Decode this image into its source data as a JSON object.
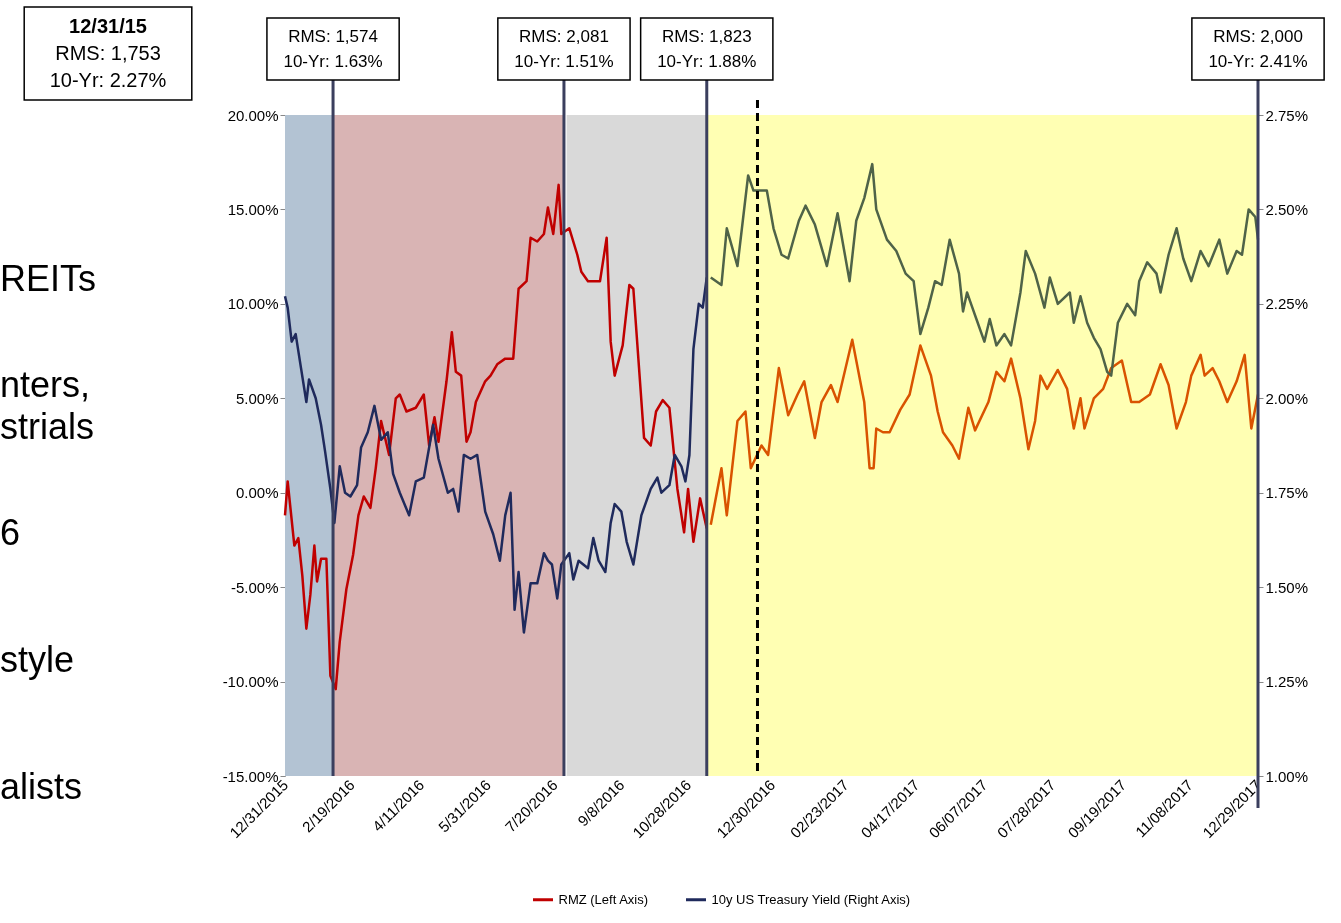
{
  "chart_data": {
    "type": "line",
    "xlim": [
      "2015-12-31",
      "2017-12-29"
    ],
    "xticks": [
      {
        "value": "2015-12-31",
        "label": "12/31/2015"
      },
      {
        "value": "2016-02-19",
        "label": "2/19/2016"
      },
      {
        "value": "2016-04-11",
        "label": "4/11/2016"
      },
      {
        "value": "2016-05-31",
        "label": "5/31/2016"
      },
      {
        "value": "2016-07-20",
        "label": "7/20/2016"
      },
      {
        "value": "2016-09-08",
        "label": "9/8/2016"
      },
      {
        "value": "2016-10-28",
        "label": "10/28/2016"
      },
      {
        "value": "2016-12-30",
        "label": "12/30/2016"
      },
      {
        "value": "2017-02-23",
        "label": "02/23/2017"
      },
      {
        "value": "2017-04-17",
        "label": "04/17/2017"
      },
      {
        "value": "2017-06-07",
        "label": "06/07/2017"
      },
      {
        "value": "2017-07-28",
        "label": "07/28/2017"
      },
      {
        "value": "2017-09-19",
        "label": "09/19/2017"
      },
      {
        "value": "2017-11-08",
        "label": "11/08/2017"
      },
      {
        "value": "2017-12-29",
        "label": "12/29/2017"
      }
    ],
    "ylim": [
      -15,
      20
    ],
    "yticks": [
      {
        "value": -15,
        "label": "-15.00%"
      },
      {
        "value": -10,
        "label": "-10.00%"
      },
      {
        "value": -5,
        "label": "-5.00%"
      },
      {
        "value": 0,
        "label": "0.00%"
      },
      {
        "value": 5,
        "label": "5.00%"
      },
      {
        "value": 10,
        "label": "10.00%"
      },
      {
        "value": 15,
        "label": "15.00%"
      },
      {
        "value": 20,
        "label": "20.00%"
      }
    ],
    "y2lim": [
      1,
      2.75
    ],
    "y2ticks": [
      {
        "value": 1,
        "label": "1.00%"
      },
      {
        "value": 1.25,
        "label": "1.25%"
      },
      {
        "value": 1.5,
        "label": "1.50%"
      },
      {
        "value": 1.75,
        "label": "1.75%"
      },
      {
        "value": 2,
        "label": "2.00%"
      },
      {
        "value": 2.25,
        "label": "2.25%"
      },
      {
        "value": 2.5,
        "label": "2.50%"
      },
      {
        "value": 2.75,
        "label": "2.75%"
      }
    ],
    "legend": "bottom",
    "series": [
      {
        "name": "RMZ (Left Axis)",
        "color": "#c00000",
        "x": [
          "2015-12-31",
          "2016-01-02",
          "2016-01-07",
          "2016-01-10",
          "2016-01-13",
          "2016-01-16",
          "2016-01-19",
          "2016-01-22",
          "2016-01-24",
          "2016-01-27",
          "2016-01-31",
          "2016-02-03",
          "2016-02-07",
          "2016-02-10",
          "2016-02-15",
          "2016-02-20",
          "2016-02-24",
          "2016-02-28",
          "2016-03-04",
          "2016-03-08",
          "2016-03-12",
          "2016-03-18",
          "2016-03-23",
          "2016-03-26",
          "2016-03-31",
          "2016-04-07",
          "2016-04-13",
          "2016-04-17",
          "2016-04-21",
          "2016-04-24",
          "2016-04-30",
          "2016-05-04",
          "2016-05-07",
          "2016-05-11",
          "2016-05-15",
          "2016-05-18",
          "2016-05-22",
          "2016-05-29",
          "2016-06-02",
          "2016-06-07",
          "2016-06-13",
          "2016-06-19",
          "2016-06-23",
          "2016-06-29",
          "2016-07-02",
          "2016-07-07",
          "2016-07-12",
          "2016-07-15",
          "2016-07-19",
          "2016-07-23",
          "2016-07-25",
          "2016-07-31",
          "2016-08-06",
          "2016-08-09",
          "2016-08-14",
          "2016-08-18",
          "2016-08-23",
          "2016-08-28",
          "2016-08-31",
          "2016-09-03",
          "2016-09-09",
          "2016-09-14",
          "2016-09-17",
          "2016-09-25",
          "2016-09-30",
          "2016-10-04",
          "2016-10-09",
          "2016-10-14",
          "2016-10-20",
          "2016-10-25",
          "2016-10-28",
          "2016-11-01",
          "2016-11-06",
          "2016-11-11"
        ],
        "values": [
          -1.2,
          0.6,
          -2.8,
          -2.4,
          -4.4,
          -7.2,
          -5.4,
          -2.8,
          -4.7,
          -3.5,
          -3.5,
          -9.7,
          -10.4,
          -7.9,
          -5.1,
          -3.3,
          -1.2,
          -0.2,
          -0.8,
          1.3,
          3.8,
          2.0,
          5.0,
          5.2,
          4.3,
          4.5,
          5.2,
          2.5,
          4.0,
          2.7,
          5.9,
          8.5,
          6.4,
          6.2,
          2.7,
          3.2,
          4.8,
          5.9,
          6.2,
          6.8,
          7.1,
          7.1,
          10.8,
          11.2,
          13.5,
          13.3,
          13.7,
          15.1,
          13.7,
          16.3,
          13.7,
          14.0,
          12.6,
          11.7,
          11.2,
          11.2,
          11.2,
          13.5,
          8.0,
          6.2,
          7.8,
          11.0,
          10.8,
          2.9,
          2.5,
          4.3,
          4.9,
          4.5,
          0.2,
          -2.1,
          0.2,
          -2.6,
          -0.3,
          -1.9
        ]
      },
      {
        "color": "#d95300",
        "x": [
          "2016-11-14",
          "2016-11-22",
          "2016-11-26",
          "2016-12-04",
          "2016-12-10",
          "2016-12-14",
          "2016-12-22",
          "2016-12-27",
          "2017-01-04",
          "2017-01-11",
          "2017-01-18",
          "2017-01-23",
          "2017-01-31",
          "2017-02-05",
          "2017-02-12",
          "2017-02-17",
          "2017-02-28",
          "2017-03-09",
          "2017-03-13",
          "2017-03-16",
          "2017-03-18",
          "2017-03-23",
          "2017-03-28",
          "2017-04-05",
          "2017-04-12",
          "2017-04-20",
          "2017-04-28",
          "2017-05-03",
          "2017-05-07",
          "2017-05-14",
          "2017-05-19",
          "2017-05-26",
          "2017-05-31",
          "2017-06-10",
          "2017-06-16",
          "2017-06-22",
          "2017-06-27",
          "2017-07-04",
          "2017-07-10",
          "2017-07-15",
          "2017-07-19",
          "2017-07-24",
          "2017-08-01",
          "2017-08-08",
          "2017-08-13",
          "2017-08-18",
          "2017-08-21",
          "2017-08-28",
          "2017-09-04",
          "2017-09-10",
          "2017-09-18",
          "2017-09-25",
          "2017-10-01",
          "2017-10-09",
          "2017-10-17",
          "2017-10-23",
          "2017-10-29",
          "2017-11-05",
          "2017-11-09",
          "2017-11-16",
          "2017-11-19",
          "2017-11-25",
          "2017-11-30",
          "2017-12-06",
          "2017-12-13",
          "2017-12-19",
          "2017-12-24",
          "2017-12-29"
        ],
        "values": [
          -1.7,
          1.3,
          -1.2,
          3.8,
          4.3,
          1.3,
          2.5,
          2.0,
          6.6,
          4.1,
          5.2,
          5.9,
          2.9,
          4.8,
          5.7,
          4.8,
          8.1,
          4.8,
          1.3,
          1.3,
          3.4,
          3.2,
          3.2,
          4.4,
          5.2,
          7.8,
          6.2,
          4.3,
          3.2,
          2.5,
          1.8,
          4.5,
          3.3,
          4.8,
          6.4,
          5.9,
          7.1,
          5.0,
          2.3,
          3.8,
          6.2,
          5.5,
          6.5,
          5.5,
          3.4,
          5.0,
          3.4,
          5.0,
          5.5,
          6.6,
          7.0,
          4.8,
          4.8,
          5.2,
          6.8,
          5.7,
          3.4,
          4.8,
          6.2,
          7.3,
          6.2,
          6.6,
          5.9,
          4.8,
          5.9,
          7.3,
          3.4,
          5.2
        ]
      },
      {
        "name": "10y US Treasury Yield (Right Axis)",
        "color": "#1f2a5c",
        "axis": "y2",
        "x": [
          "2015-12-31",
          "2016-01-02",
          "2016-01-05",
          "2016-01-08",
          "2016-01-12",
          "2016-01-16",
          "2016-01-18",
          "2016-01-23",
          "2016-01-27",
          "2016-01-30",
          "2016-02-03",
          "2016-02-06",
          "2016-02-10",
          "2016-02-14",
          "2016-02-18",
          "2016-02-23",
          "2016-02-26",
          "2016-03-02",
          "2016-03-07",
          "2016-03-12",
          "2016-03-17",
          "2016-03-21",
          "2016-03-26",
          "2016-04-02",
          "2016-04-07",
          "2016-04-13",
          "2016-04-20",
          "2016-04-24",
          "2016-05-01",
          "2016-05-05",
          "2016-05-09",
          "2016-05-13",
          "2016-05-18",
          "2016-05-23",
          "2016-05-29",
          "2016-06-04",
          "2016-06-09",
          "2016-06-13",
          "2016-06-17",
          "2016-06-20",
          "2016-06-23",
          "2016-06-27",
          "2016-07-02",
          "2016-07-07",
          "2016-07-12",
          "2016-07-15",
          "2016-07-18",
          "2016-07-22",
          "2016-07-25",
          "2016-07-31",
          "2016-08-03",
          "2016-08-07",
          "2016-08-14",
          "2016-08-18",
          "2016-08-22",
          "2016-08-27",
          "2016-08-31",
          "2016-09-03",
          "2016-09-08",
          "2016-09-12",
          "2016-09-17",
          "2016-09-23",
          "2016-09-30",
          "2016-10-05",
          "2016-10-08",
          "2016-10-14",
          "2016-10-18",
          "2016-10-23",
          "2016-10-26",
          "2016-10-29",
          "2016-11-01",
          "2016-11-05",
          "2016-11-08",
          "2016-11-11"
        ],
        "values": [
          2.27,
          2.24,
          2.15,
          2.17,
          2.08,
          1.99,
          2.05,
          2.0,
          1.93,
          1.86,
          1.76,
          1.67,
          1.82,
          1.75,
          1.74,
          1.77,
          1.87,
          1.91,
          1.98,
          1.89,
          1.91,
          1.8,
          1.75,
          1.69,
          1.78,
          1.79,
          1.93,
          1.84,
          1.75,
          1.76,
          1.7,
          1.85,
          1.84,
          1.85,
          1.7,
          1.64,
          1.57,
          1.69,
          1.75,
          1.44,
          1.54,
          1.38,
          1.51,
          1.51,
          1.59,
          1.57,
          1.56,
          1.47,
          1.56,
          1.59,
          1.52,
          1.57,
          1.55,
          1.63,
          1.57,
          1.54,
          1.67,
          1.72,
          1.7,
          1.62,
          1.56,
          1.69,
          1.76,
          1.79,
          1.75,
          1.77,
          1.85,
          1.82,
          1.78,
          1.85,
          2.13,
          2.25,
          2.24,
          2.32
        ]
      },
      {
        "color": "#4f6348",
        "axis": "y2",
        "x": [
          "2016-11-14",
          "2016-11-22",
          "2016-11-26",
          "2016-12-04",
          "2016-12-08",
          "2016-12-12",
          "2016-12-16",
          "2016-12-26",
          "2016-12-31",
          "2017-01-06",
          "2017-01-11",
          "2017-01-19",
          "2017-01-24",
          "2017-01-31",
          "2017-02-09",
          "2017-02-17",
          "2017-02-26",
          "2017-03-03",
          "2017-03-09",
          "2017-03-15",
          "2017-03-18",
          "2017-03-26",
          "2017-04-02",
          "2017-04-09",
          "2017-04-15",
          "2017-04-20",
          "2017-04-26",
          "2017-05-01",
          "2017-05-06",
          "2017-05-12",
          "2017-05-19",
          "2017-05-22",
          "2017-05-25",
          "2017-05-28",
          "2017-06-01",
          "2017-06-07",
          "2017-06-11",
          "2017-06-16",
          "2017-06-22",
          "2017-06-27",
          "2017-07-04",
          "2017-07-08",
          "2017-07-15",
          "2017-07-22",
          "2017-07-26",
          "2017-08-01",
          "2017-08-10",
          "2017-08-13",
          "2017-08-18",
          "2017-08-23",
          "2017-08-28",
          "2017-09-02",
          "2017-09-07",
          "2017-09-10",
          "2017-09-15",
          "2017-09-22",
          "2017-09-28",
          "2017-10-01",
          "2017-10-07",
          "2017-10-14",
          "2017-10-17",
          "2017-10-23",
          "2017-10-29",
          "2017-11-03",
          "2017-11-09",
          "2017-11-16",
          "2017-11-22",
          "2017-11-30",
          "2017-12-06",
          "2017-12-13",
          "2017-12-17",
          "2017-12-22",
          "2017-12-27",
          "2017-12-29"
        ],
        "values": [
          2.32,
          2.3,
          2.45,
          2.35,
          2.47,
          2.59,
          2.55,
          2.55,
          2.45,
          2.38,
          2.37,
          2.47,
          2.51,
          2.46,
          2.35,
          2.49,
          2.31,
          2.47,
          2.53,
          2.62,
          2.5,
          2.42,
          2.39,
          2.33,
          2.31,
          2.17,
          2.24,
          2.31,
          2.3,
          2.42,
          2.33,
          2.23,
          2.28,
          2.25,
          2.21,
          2.15,
          2.21,
          2.14,
          2.17,
          2.14,
          2.28,
          2.39,
          2.33,
          2.24,
          2.32,
          2.25,
          2.28,
          2.2,
          2.27,
          2.2,
          2.16,
          2.13,
          2.07,
          2.06,
          2.2,
          2.25,
          2.22,
          2.31,
          2.36,
          2.33,
          2.28,
          2.38,
          2.45,
          2.37,
          2.31,
          2.39,
          2.35,
          2.42,
          2.33,
          2.39,
          2.38,
          2.5,
          2.48,
          2.42
        ]
      }
    ],
    "bands": [
      {
        "axis": "x",
        "from": "2015-12-31",
        "to": "2016-02-05",
        "color": "#b3c3d3"
      },
      {
        "axis": "x",
        "from": "2016-02-05",
        "to": "2016-07-27",
        "color": "#d9b4b4"
      },
      {
        "axis": "x",
        "from": "2016-07-29",
        "to": "2016-11-11",
        "color": "#d9d9d9"
      },
      {
        "axis": "x",
        "from": "2016-11-11",
        "to": "2017-12-29",
        "color": "#ffffb3"
      }
    ],
    "ref_lines": [
      {
        "axis": "x",
        "value": "2016-02-05",
        "color": "#3b3f5e"
      },
      {
        "axis": "x",
        "value": "2016-07-27",
        "color": "#3b3f5e"
      },
      {
        "axis": "x",
        "value": "2016-11-11",
        "color": "#3b3f5e"
      },
      {
        "axis": "x",
        "value": "2016-12-19",
        "color": "#000000",
        "line_style": "dashed"
      },
      {
        "axis": "x",
        "value": "2017-12-29",
        "color": "#3b3f5e"
      }
    ],
    "annotations": [
      "12/31/15\nRMS:  1,753\n10-Yr:  2.27%",
      "RMS: 1,574\n10-Yr: 1.63%",
      "RMS: 2,081\n10-Yr: 1.51%",
      "RMS: 1,823\n10-Yr: 1.88%",
      "RMS: 2,000\n10-Yr: 2.41%",
      "REITs",
      "nters,\nstrials",
      "6",
      "style",
      "alists"
    ]
  }
}
